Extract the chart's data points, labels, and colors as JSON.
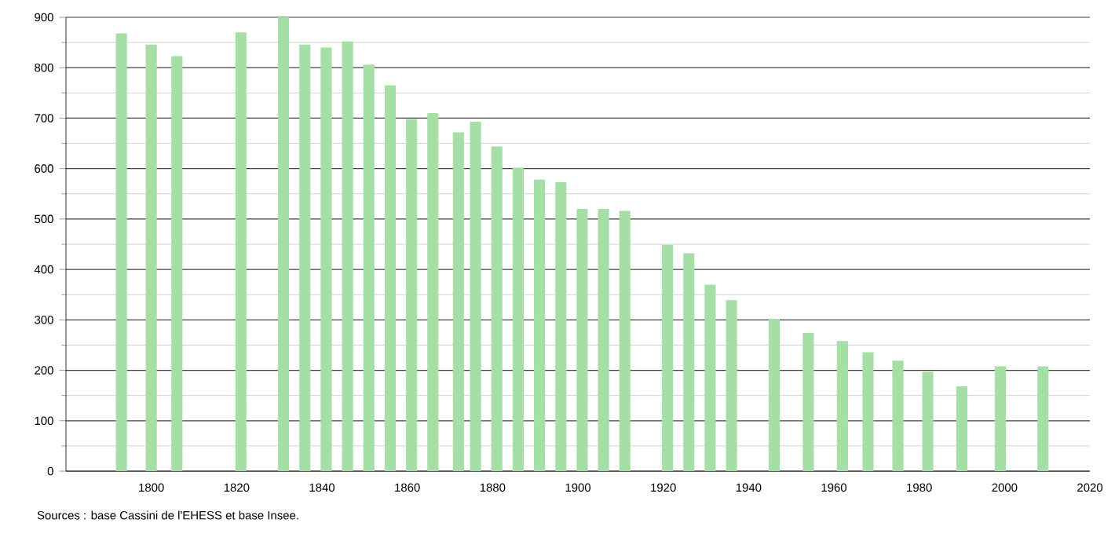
{
  "chart_data": {
    "type": "bar",
    "color": "#a6dfa6",
    "x": [
      1793,
      1800,
      1806,
      1821,
      1831,
      1836,
      1841,
      1846,
      1851,
      1856,
      1861,
      1866,
      1872,
      1876,
      1881,
      1886,
      1891,
      1896,
      1901,
      1906,
      1911,
      1921,
      1926,
      1931,
      1936,
      1946,
      1954,
      1962,
      1968,
      1975,
      1982,
      1990,
      1999,
      2009
    ],
    "values": [
      868,
      846,
      823,
      870,
      900,
      846,
      840,
      852,
      806,
      765,
      698,
      710,
      672,
      693,
      644,
      602,
      578,
      573,
      520,
      520,
      516,
      449,
      432,
      370,
      339,
      302,
      274,
      258,
      236,
      219,
      197,
      168,
      208,
      208
    ],
    "xlim": [
      1780,
      2020
    ],
    "xticks": [
      1800,
      1820,
      1840,
      1860,
      1880,
      1900,
      1920,
      1940,
      1960,
      1980,
      2000,
      2020
    ],
    "ylim": [
      0,
      900
    ],
    "yticks": [
      0,
      100,
      200,
      300,
      400,
      500,
      600,
      700,
      800,
      900
    ],
    "grid": "y",
    "annotations": [
      "Sources : base Cassini de l'EHESS et base Insee."
    ]
  }
}
